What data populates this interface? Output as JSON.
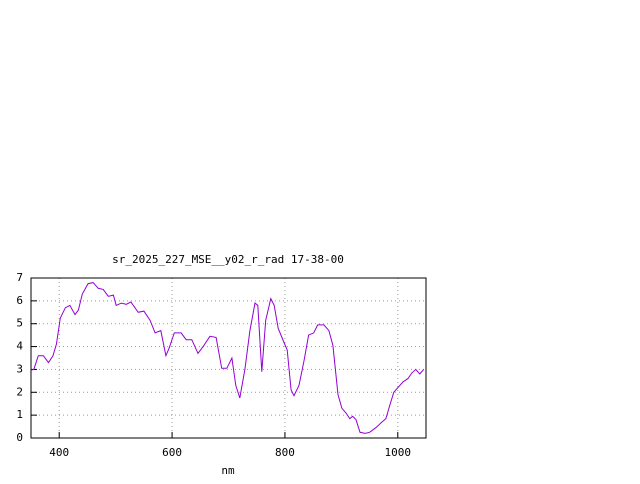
{
  "chart_data": {
    "type": "line",
    "title": "sr_2025_227_MSE__y02_r_rad 17-38-00",
    "xlabel": "nm",
    "xlim": [
      350,
      1050
    ],
    "xticks": [
      400,
      600,
      800,
      1000
    ],
    "ylim": [
      0,
      7
    ],
    "yticks": [
      0,
      1,
      2,
      3,
      4,
      5,
      6,
      7
    ],
    "grid": true,
    "series": [
      {
        "color": "#9400d3",
        "x": [
          350,
          355,
          363,
          372,
          381,
          389,
          395,
          402,
          411,
          419,
          428,
          434,
          441,
          451,
          460,
          469,
          478,
          487,
          496,
          501,
          510,
          519,
          527,
          540,
          550,
          561,
          570,
          580,
          589,
          595,
          604,
          616,
          625,
          635,
          646,
          655,
          667,
          678,
          688,
          697,
          706,
          713,
          720,
          729,
          738,
          747,
          752,
          759,
          766,
          775,
          781,
          788,
          798,
          804,
          811,
          816,
          825,
          834,
          842,
          851,
          858,
          869,
          878,
          885,
          894,
          901,
          908,
          915,
          920,
          926,
          933,
          942,
          950,
          961,
          972,
          979,
          986,
          993,
          1000,
          1009,
          1018,
          1025,
          1032,
          1039,
          1046
        ],
        "values": [
          2.97,
          3.0,
          3.6,
          3.6,
          3.3,
          3.6,
          4.1,
          5.25,
          5.7,
          5.8,
          5.4,
          5.6,
          6.3,
          6.75,
          6.8,
          6.55,
          6.5,
          6.2,
          6.25,
          5.8,
          5.9,
          5.85,
          5.95,
          5.5,
          5.55,
          5.15,
          4.6,
          4.7,
          3.6,
          3.95,
          4.6,
          4.6,
          4.3,
          4.3,
          3.7,
          4.0,
          4.45,
          4.4,
          3.05,
          3.05,
          3.5,
          2.3,
          1.75,
          3.0,
          4.7,
          5.9,
          5.8,
          2.9,
          5.15,
          6.1,
          5.8,
          4.8,
          4.2,
          3.85,
          2.1,
          1.85,
          2.3,
          3.4,
          4.5,
          4.6,
          4.95,
          4.95,
          4.7,
          4.05,
          1.9,
          1.3,
          1.1,
          0.85,
          0.95,
          0.8,
          0.25,
          0.2,
          0.25,
          0.45,
          0.7,
          0.85,
          1.45,
          2.0,
          2.2,
          2.45,
          2.6,
          2.85,
          3.0,
          2.8,
          3.0
        ]
      }
    ]
  }
}
